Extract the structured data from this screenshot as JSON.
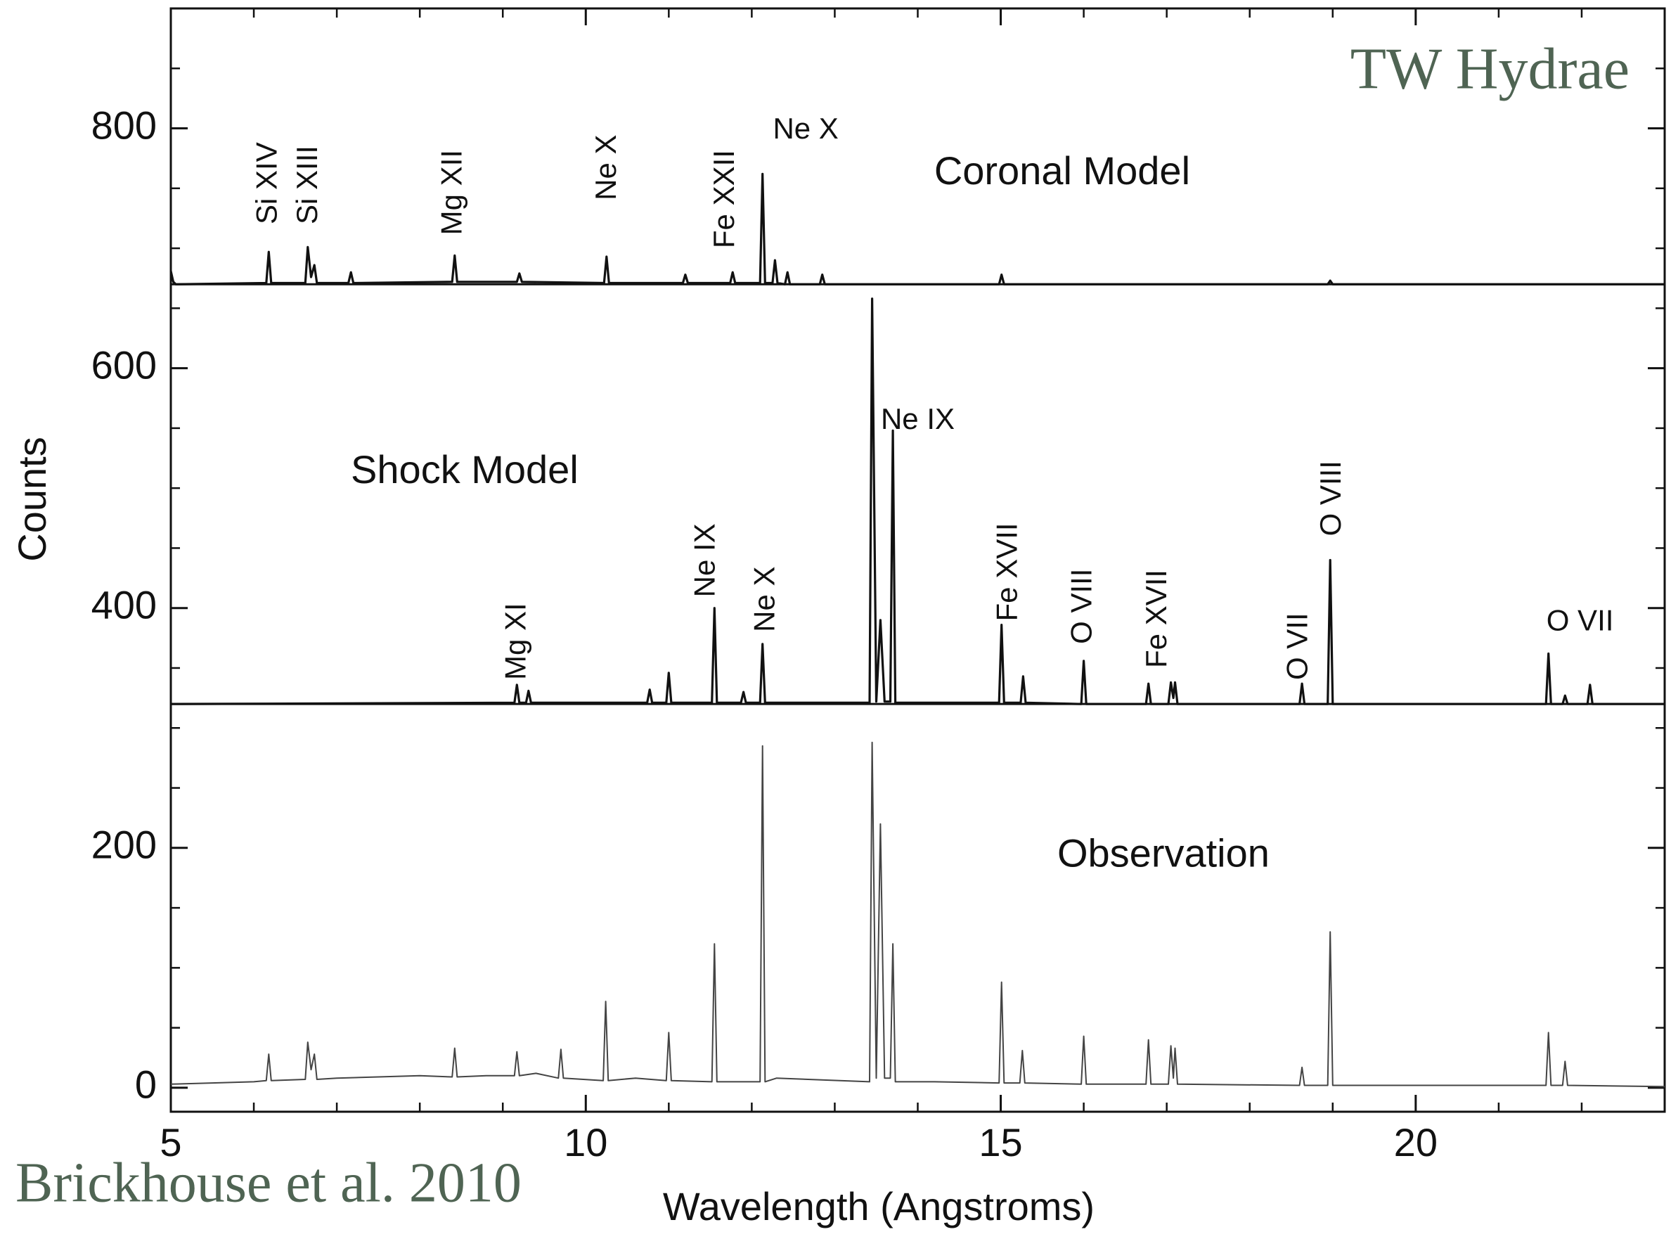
{
  "chart_data": {
    "type": "line",
    "title": "TW Hydrae",
    "source": "Brickhouse et al. 2010",
    "xlabel": "Wavelength (Angstroms)",
    "ylabel": "Counts",
    "xlim": [
      5,
      23
    ],
    "ylim": [
      -20,
      900
    ],
    "xticks": [
      5,
      10,
      15,
      20
    ],
    "xminorticks": [
      6,
      7,
      8,
      9,
      11,
      12,
      13,
      14,
      16,
      17,
      18,
      19,
      21,
      22
    ],
    "yticks": [
      0,
      200,
      400,
      600,
      800
    ],
    "yminorticks": [
      50,
      100,
      150,
      250,
      300,
      350,
      450,
      500,
      550,
      650,
      700,
      750,
      850
    ],
    "dividers": [
      670,
      320
    ],
    "series": [
      {
        "name": "Coronal Model",
        "color": "#111111",
        "x": [
          5.0,
          5.03,
          5.06,
          6.15,
          6.18,
          6.21,
          6.62,
          6.65,
          6.69,
          6.73,
          6.76,
          7.14,
          7.17,
          7.2,
          8.39,
          8.42,
          8.45,
          9.17,
          9.2,
          9.23,
          10.22,
          10.25,
          10.28,
          11.17,
          11.2,
          11.23,
          11.74,
          11.77,
          11.8,
          12.1,
          12.13,
          12.16,
          12.25,
          12.28,
          12.31,
          12.4,
          12.43,
          12.46,
          12.82,
          12.85,
          12.88,
          14.98,
          15.01,
          15.04,
          18.94,
          18.97,
          19.0,
          23.0
        ],
        "values": [
          681,
          672,
          670,
          671,
          697,
          671,
          671,
          701,
          676,
          686,
          671,
          671,
          680,
          671,
          672,
          694,
          672,
          672,
          679,
          672,
          671,
          693,
          671,
          671,
          678,
          671,
          671,
          680,
          671,
          671,
          762,
          671,
          671,
          690,
          671,
          670,
          680,
          670,
          670,
          678,
          670,
          670,
          678,
          670,
          670,
          673,
          670,
          670
        ]
      },
      {
        "name": "Shock Model",
        "color": "#111111",
        "x": [
          5.0,
          9.14,
          9.17,
          9.2,
          9.28,
          9.31,
          9.34,
          10.74,
          10.77,
          10.8,
          10.97,
          11.0,
          11.03,
          11.52,
          11.55,
          11.58,
          11.87,
          11.9,
          11.93,
          12.1,
          12.13,
          12.16,
          13.42,
          13.45,
          13.5,
          13.55,
          13.6,
          13.67,
          13.7,
          13.73,
          14.98,
          15.01,
          15.04,
          15.24,
          15.27,
          15.3,
          15.97,
          16.0,
          16.03,
          16.75,
          16.78,
          16.81,
          17.02,
          17.05,
          17.08,
          17.1,
          17.13,
          18.6,
          18.63,
          18.66,
          18.94,
          18.97,
          19.0,
          21.57,
          21.6,
          21.63,
          21.77,
          21.8,
          21.83,
          22.07,
          22.1,
          22.13,
          23.0
        ],
        "values": [
          320,
          321,
          336,
          321,
          321,
          331,
          321,
          321,
          332,
          321,
          321,
          346,
          321,
          321,
          400,
          321,
          321,
          330,
          321,
          321,
          370,
          321,
          321,
          658,
          322,
          390,
          322,
          322,
          548,
          321,
          321,
          386,
          321,
          321,
          343,
          321,
          320,
          356,
          320,
          320,
          337,
          320,
          320,
          338,
          325,
          338,
          320,
          320,
          337,
          320,
          320,
          440,
          320,
          320,
          362,
          320,
          320,
          327,
          320,
          320,
          336,
          320,
          320
        ]
      },
      {
        "name": "Observation",
        "color": "#444444",
        "x": [
          5.0,
          5.5,
          6.0,
          6.15,
          6.18,
          6.21,
          6.62,
          6.65,
          6.69,
          6.73,
          6.76,
          7.0,
          7.5,
          8.0,
          8.39,
          8.42,
          8.45,
          8.8,
          9.14,
          9.17,
          9.2,
          9.4,
          9.67,
          9.7,
          9.73,
          10.21,
          10.24,
          10.27,
          10.6,
          10.97,
          11.0,
          11.03,
          11.52,
          11.55,
          11.58,
          12.1,
          12.13,
          12.16,
          12.3,
          13.42,
          13.45,
          13.5,
          13.55,
          13.6,
          13.67,
          13.7,
          13.73,
          14.2,
          14.98,
          15.01,
          15.04,
          15.23,
          15.26,
          15.29,
          15.97,
          16.0,
          16.03,
          16.75,
          16.78,
          16.81,
          17.02,
          17.05,
          17.08,
          17.1,
          17.13,
          18.6,
          18.63,
          18.66,
          18.94,
          18.97,
          19.0,
          20.0,
          21.57,
          21.6,
          21.63,
          21.77,
          21.8,
          21.83,
          23.0
        ],
        "values": [
          3,
          4,
          5,
          6,
          28,
          6,
          7,
          38,
          15,
          28,
          7,
          8,
          9,
          10,
          9,
          33,
          9,
          10,
          10,
          30,
          10,
          12,
          8,
          32,
          8,
          6,
          72,
          6,
          8,
          6,
          46,
          6,
          5,
          120,
          5,
          5,
          285,
          5,
          8,
          5,
          288,
          8,
          220,
          8,
          8,
          120,
          5,
          5,
          4,
          88,
          4,
          4,
          31,
          4,
          3,
          43,
          3,
          3,
          40,
          3,
          3,
          35,
          8,
          33,
          3,
          2,
          17,
          2,
          2,
          130,
          2,
          2,
          2,
          46,
          2,
          2,
          22,
          2,
          1
        ]
      }
    ],
    "annotations": [
      {
        "text": "Si XIV",
        "x": 6.18,
        "y": 720,
        "rotated": true
      },
      {
        "text": "Si XIII",
        "x": 6.67,
        "y": 720,
        "rotated": true
      },
      {
        "text": "Mg XII",
        "x": 8.41,
        "y": 711,
        "rotated": true
      },
      {
        "text": "Ne X",
        "x": 10.27,
        "y": 740,
        "rotated": true
      },
      {
        "text": "Fe XXII",
        "x": 11.69,
        "y": 700,
        "rotated": true
      },
      {
        "text": "Ne X",
        "x": 12.65,
        "y": 798,
        "rotated": false
      },
      {
        "text": "Mg XI",
        "x": 9.18,
        "y": 340,
        "rotated": true
      },
      {
        "text": "Ne IX",
        "x": 11.46,
        "y": 409,
        "rotated": true
      },
      {
        "text": "Ne X",
        "x": 12.18,
        "y": 380,
        "rotated": true
      },
      {
        "text": "Ne IX",
        "x": 14.0,
        "y": 556,
        "rotated": false
      },
      {
        "text": "Fe XVII",
        "x": 15.1,
        "y": 389,
        "rotated": true
      },
      {
        "text": "O VIII",
        "x": 16.0,
        "y": 370,
        "rotated": true
      },
      {
        "text": "Fe XVII",
        "x": 16.9,
        "y": 350,
        "rotated": true
      },
      {
        "text": "O VII",
        "x": 18.6,
        "y": 340,
        "rotated": true
      },
      {
        "text": "O VIII",
        "x": 19.0,
        "y": 460,
        "rotated": true
      },
      {
        "text": "O VII",
        "x": 21.98,
        "y": 388,
        "rotated": false
      }
    ],
    "panel_labels": [
      {
        "text": "Coronal Model",
        "x": 15.74,
        "y": 762
      },
      {
        "text": "Shock Model",
        "x": 8.54,
        "y": 513
      },
      {
        "text": "Observation",
        "x": 16.96,
        "y": 193
      }
    ]
  }
}
